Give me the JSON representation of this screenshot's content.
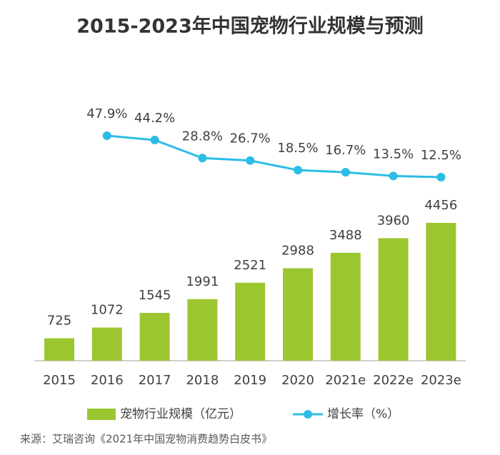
{
  "chart_data": {
    "type": "bar",
    "title": "2015-2023年中国宠物行业规模与预测",
    "categories": [
      "2015",
      "2016",
      "2017",
      "2018",
      "2019",
      "2020",
      "2021e",
      "2022e",
      "2023e"
    ],
    "series": [
      {
        "name": "宠物行业规模（亿元）",
        "type": "bar",
        "color": "#9cc630",
        "values": [
          725,
          1072,
          1545,
          1991,
          2521,
          2988,
          3488,
          3960,
          4456
        ]
      },
      {
        "name": "增长率（%）",
        "type": "line",
        "axis": "y2",
        "color": "#2bbde6",
        "values": [
          null,
          47.9,
          44.2,
          28.8,
          26.7,
          18.5,
          16.7,
          13.5,
          12.5
        ],
        "value_labels": [
          null,
          "47.9%",
          "44.2%",
          "28.8%",
          "26.7%",
          "18.5%",
          "16.7%",
          "13.5%",
          "12.5%"
        ]
      }
    ],
    "source": "来源：艾瑞咨询《2021年中国宠物消费趋势白皮书》"
  }
}
